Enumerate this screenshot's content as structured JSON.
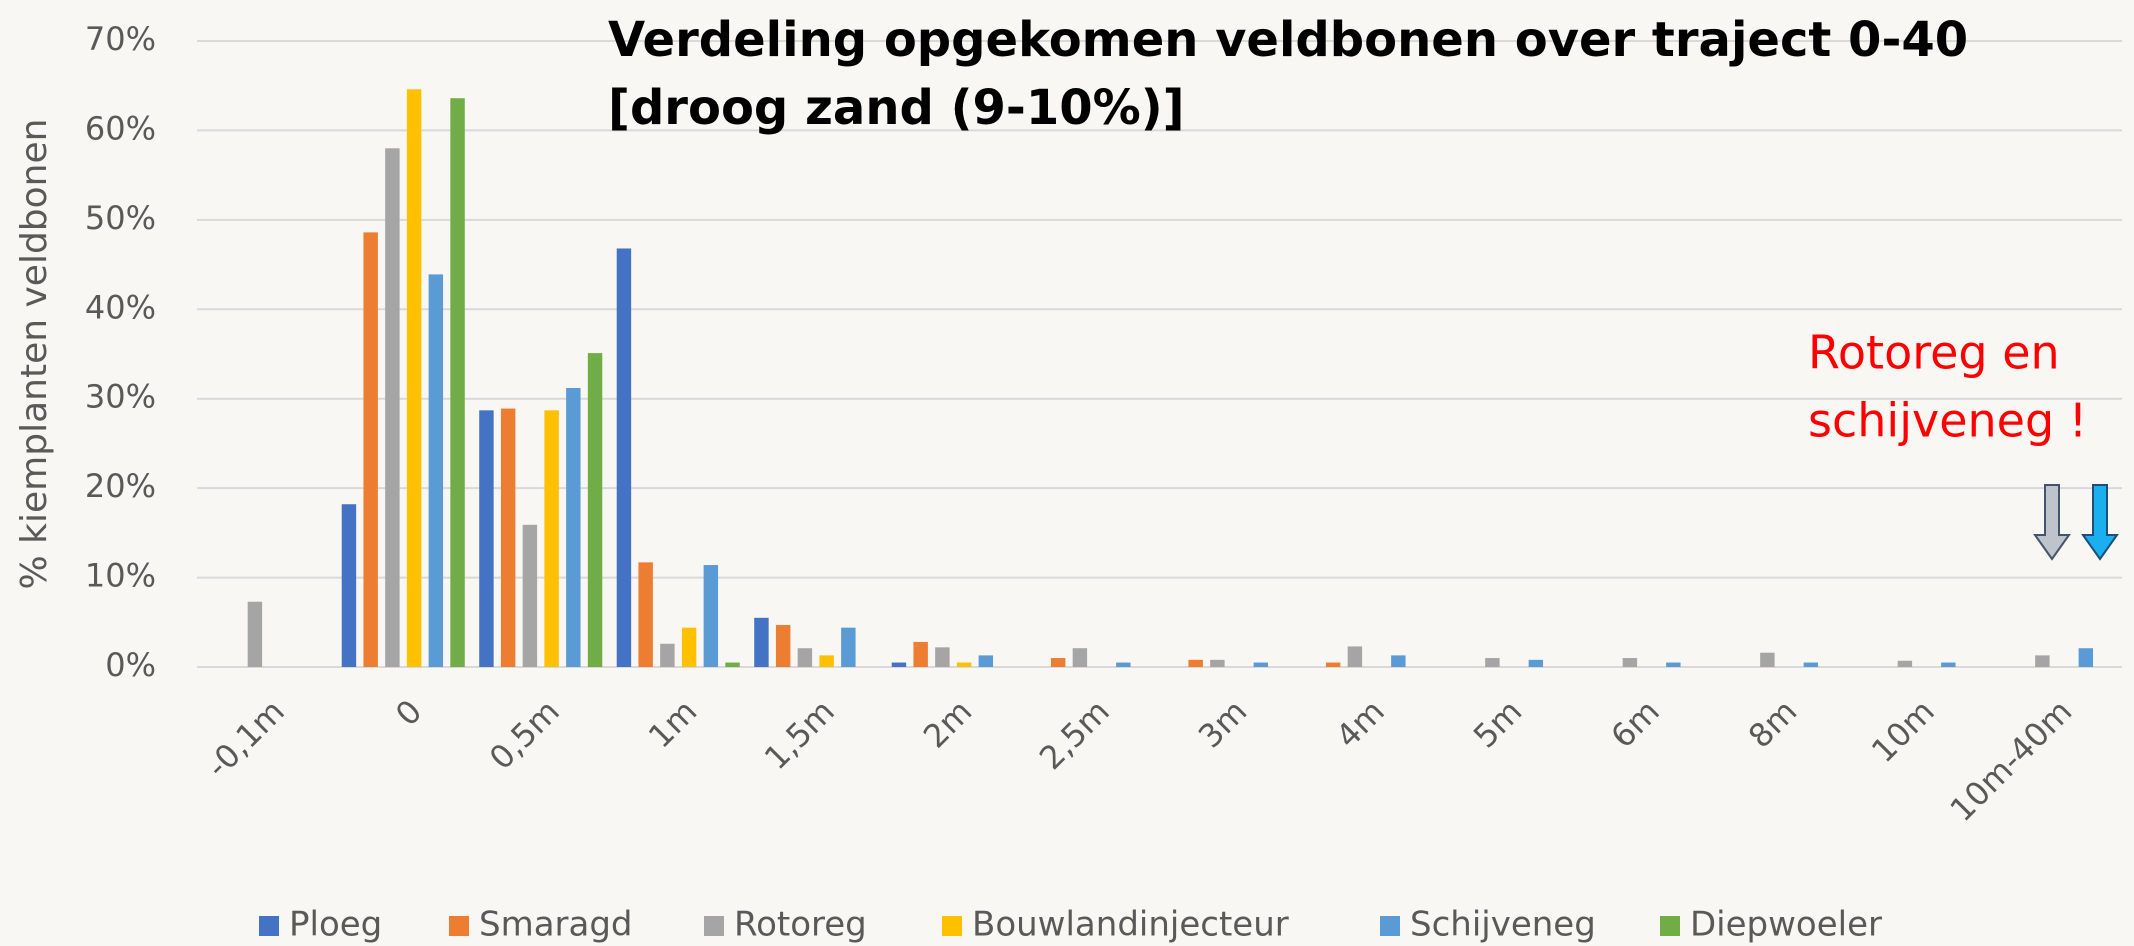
{
  "chart_data": {
    "type": "bar",
    "title": [
      "Verdeling opgekomen veldbonen over traject 0-40",
      "[droog zand (9-10%)]"
    ],
    "y_label": "% kiemplanten veldbonen",
    "annotation": [
      "Rotoreg en",
      "schijveneg !"
    ],
    "categories": [
      "-0,1m",
      "0",
      "0,5m",
      "1m",
      "1,5m",
      "2m",
      "2,5m",
      "3m",
      "4m",
      "5m",
      "6m",
      "8m",
      "10m",
      "10m-40m"
    ],
    "series": [
      {
        "name": "Ploeg",
        "color": "#4472c4",
        "values": [
          0,
          18.2,
          28.7,
          46.8,
          5.5,
          0.5,
          0,
          0,
          0,
          0,
          0,
          0,
          0,
          0
        ]
      },
      {
        "name": "Smaragd",
        "color": "#ed7d31",
        "values": [
          0,
          48.6,
          28.9,
          11.7,
          4.7,
          2.8,
          1.0,
          0.8,
          0.5,
          0,
          0,
          0,
          0,
          0
        ]
      },
      {
        "name": "Rotoreg",
        "color": "#a5a5a5",
        "values": [
          7.3,
          58.0,
          15.9,
          2.6,
          2.1,
          2.2,
          2.1,
          0.8,
          2.3,
          1.0,
          1.0,
          1.6,
          0.7,
          1.3
        ]
      },
      {
        "name": "Bouwlandinjecteur",
        "color": "#ffc000",
        "values": [
          0,
          64.6,
          28.7,
          4.4,
          1.3,
          0.5,
          0,
          0,
          0,
          0,
          0,
          0,
          0,
          0
        ]
      },
      {
        "name": "Schijveneg",
        "color": "#5b9bd5",
        "values": [
          0,
          43.9,
          31.2,
          11.4,
          4.4,
          1.3,
          0.5,
          0.5,
          1.3,
          0.8,
          0.5,
          0.5,
          0.5,
          2.1
        ]
      },
      {
        "name": "Diepwoeler",
        "color": "#70ad47",
        "values": [
          0,
          63.6,
          35.1,
          0.5,
          0,
          0,
          0,
          0,
          0,
          0,
          0,
          0,
          0,
          0
        ]
      }
    ],
    "ylim": [
      0,
      70
    ],
    "yticks": [
      {
        "value": 0,
        "label": "0%"
      },
      {
        "value": 10,
        "label": "10%"
      },
      {
        "value": 20,
        "label": "20%"
      },
      {
        "value": 30,
        "label": "30%"
      },
      {
        "value": 40,
        "label": "40%"
      },
      {
        "value": 50,
        "label": "50%"
      },
      {
        "value": 60,
        "label": "60%"
      },
      {
        "value": 70,
        "label": "70%"
      }
    ],
    "grid": true,
    "legend": "bottom"
  }
}
